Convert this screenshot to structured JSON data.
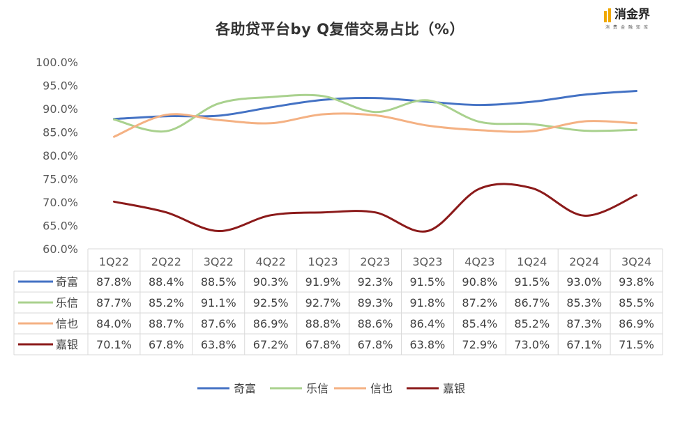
{
  "title": "各助贷平台by Q复借交易占比（%）",
  "logo": {
    "brand": "消金界",
    "sub": "消费金融知库"
  },
  "chart_data": {
    "type": "line",
    "title": "各助贷平台by Q复借交易占比（%）",
    "categories": [
      "1Q22",
      "2Q22",
      "3Q22",
      "4Q22",
      "1Q23",
      "2Q23",
      "3Q23",
      "4Q23",
      "1Q24",
      "2Q24",
      "3Q24"
    ],
    "y_ticks": [
      "60.0%",
      "65.0%",
      "70.0%",
      "75.0%",
      "80.0%",
      "85.0%",
      "90.0%",
      "95.0%",
      "100.0%"
    ],
    "ylim": [
      60,
      100
    ],
    "series": [
      {
        "name": "奇富",
        "color": "#4472c4",
        "values": [
          87.8,
          88.4,
          88.5,
          90.3,
          91.9,
          92.3,
          91.5,
          90.8,
          91.5,
          93.0,
          93.8
        ],
        "labels": [
          "87.8%",
          "88.4%",
          "88.5%",
          "90.3%",
          "91.9%",
          "92.3%",
          "91.5%",
          "90.8%",
          "91.5%",
          "93.0%",
          "93.8%"
        ]
      },
      {
        "name": "乐信",
        "color": "#a9d18e",
        "values": [
          87.7,
          85.2,
          91.1,
          92.5,
          92.7,
          89.3,
          91.8,
          87.2,
          86.7,
          85.3,
          85.5
        ],
        "labels": [
          "87.7%",
          "85.2%",
          "91.1%",
          "92.5%",
          "92.7%",
          "89.3%",
          "91.8%",
          "87.2%",
          "86.7%",
          "85.3%",
          "85.5%"
        ]
      },
      {
        "name": "信也",
        "color": "#f4b183",
        "values": [
          84.0,
          88.7,
          87.6,
          86.9,
          88.8,
          88.6,
          86.4,
          85.4,
          85.2,
          87.3,
          86.9
        ],
        "labels": [
          "84.0%",
          "88.7%",
          "87.6%",
          "86.9%",
          "88.8%",
          "88.6%",
          "86.4%",
          "85.4%",
          "85.2%",
          "87.3%",
          "86.9%"
        ]
      },
      {
        "name": "嘉银",
        "color": "#8b1a1a",
        "values": [
          70.1,
          67.8,
          63.8,
          67.2,
          67.8,
          67.8,
          63.8,
          72.9,
          73.0,
          67.1,
          71.5
        ],
        "labels": [
          "70.1%",
          "67.8%",
          "63.8%",
          "67.2%",
          "67.8%",
          "67.8%",
          "63.8%",
          "72.9%",
          "73.0%",
          "67.1%",
          "71.5%"
        ]
      }
    ],
    "legend": "bottom",
    "grid": false
  }
}
